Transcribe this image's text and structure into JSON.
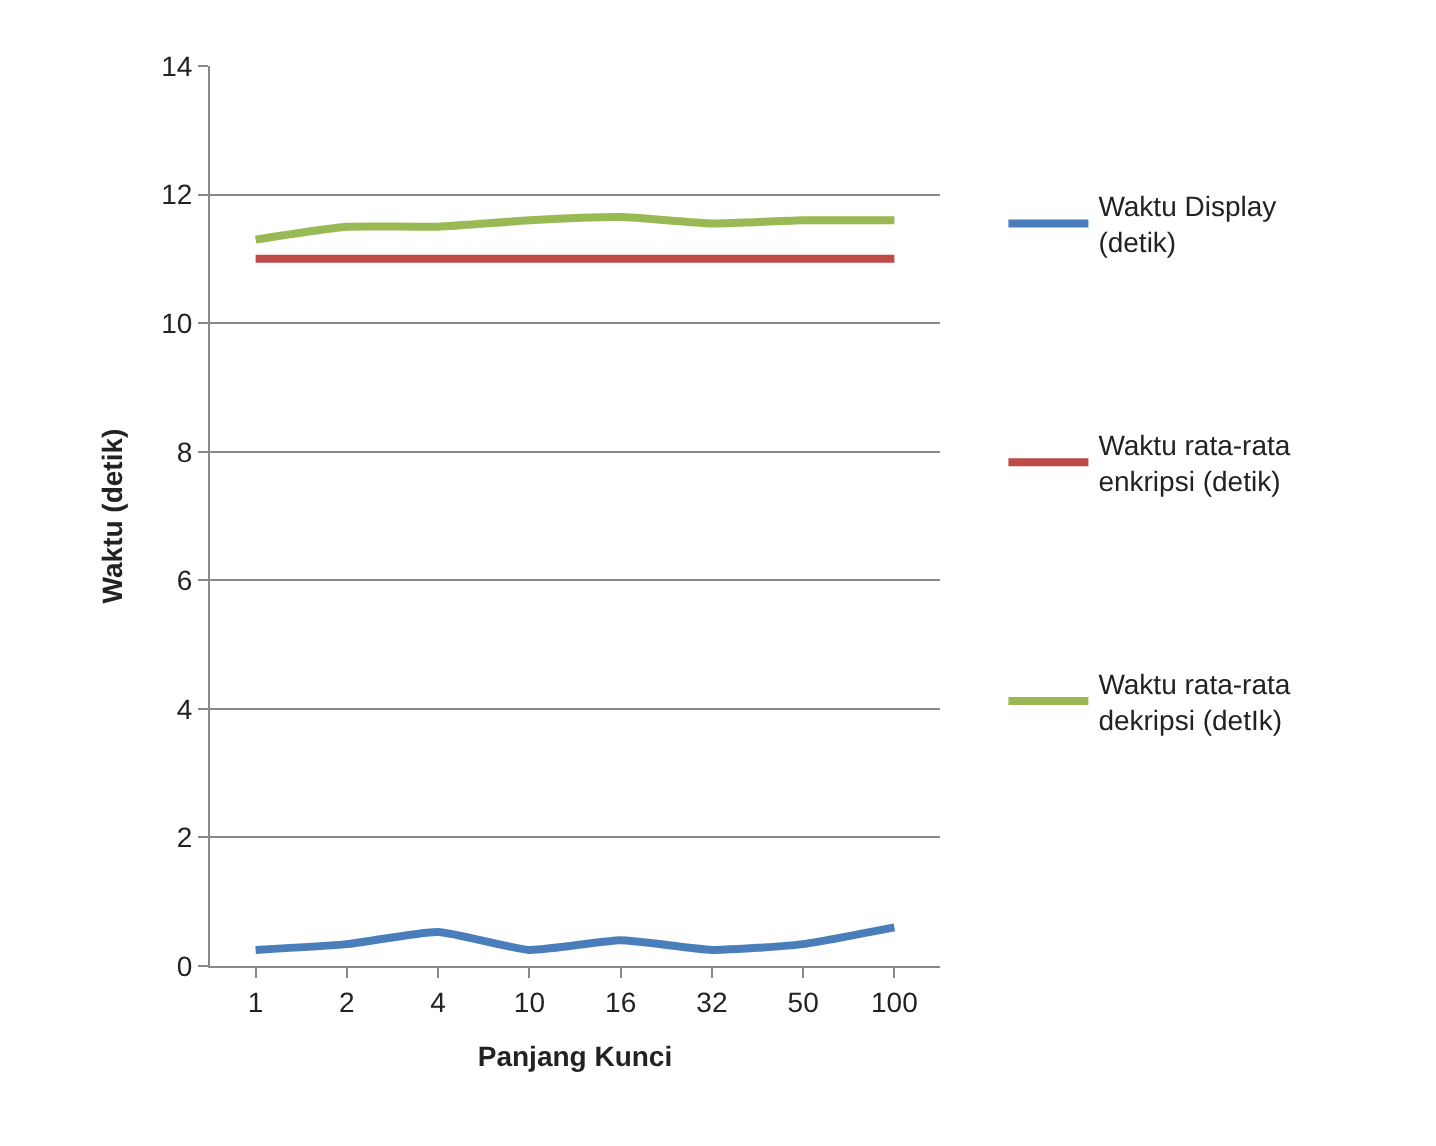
{
  "chart_data": {
    "type": "line",
    "xlabel": "Panjang Kunci",
    "ylabel": "Waktu (detik)",
    "categories": [
      "1",
      "2",
      "4",
      "10",
      "16",
      "32",
      "50",
      "100"
    ],
    "series": [
      {
        "name": "Waktu Display\n(detik)",
        "color": "#4a7ebb",
        "values": [
          0.25,
          0.34,
          0.53,
          0.25,
          0.4,
          0.25,
          0.34,
          0.6
        ]
      },
      {
        "name": "Waktu rata-rata\nenkripsi (detik)",
        "color": "#be4b48",
        "values": [
          11.0,
          11.0,
          11.0,
          11.0,
          11.0,
          11.0,
          11.0,
          11.0
        ]
      },
      {
        "name": "Waktu rata-rata\ndekripsi (detIk)",
        "color": "#98b954",
        "values": [
          11.3,
          11.5,
          11.5,
          11.6,
          11.65,
          11.55,
          11.6,
          11.6
        ]
      }
    ],
    "ylim": [
      0,
      14
    ],
    "yticks": [
      0,
      2,
      4,
      6,
      8,
      10,
      12,
      14
    ],
    "grid": "y",
    "legend": "right",
    "marker": "none",
    "line_style": "solid"
  }
}
